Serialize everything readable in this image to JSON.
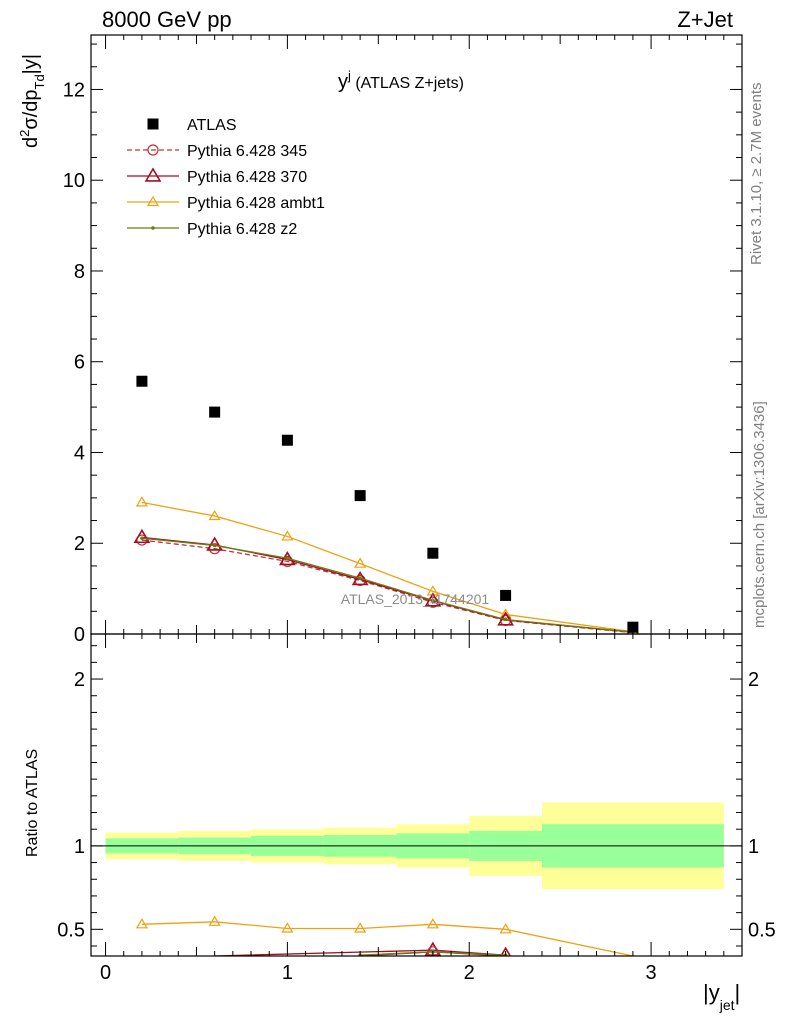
{
  "header": {
    "left": "8000 GeV pp",
    "right": "Z+Jet"
  },
  "side_labels": {
    "rivet": "Rivet 3.1.10, ≥ 2.7M events",
    "mcplots": "mcplots.cern.ch [arXiv:1306.3436]"
  },
  "watermark": "ATLAS_2013_I1744201",
  "chart_data": [
    {
      "type": "scatter",
      "panel": "main",
      "title_main": "y",
      "title_sup": "j",
      "title_rest": " (ATLAS Z+jets)",
      "ylabel": "d²σ/dp_Td|y|",
      "xlim": [
        -0.08,
        3.5
      ],
      "ylim": [
        0,
        13.2
      ],
      "yticks": [
        0,
        2,
        4,
        6,
        8,
        10,
        12
      ],
      "yticklabels": [
        "0",
        "2",
        "4",
        "6",
        "8",
        "10",
        "12"
      ],
      "bin_edges": [
        0,
        0.4,
        0.8,
        1.2,
        1.6,
        2.0,
        2.4,
        3.4
      ],
      "x": [
        0.2,
        0.6,
        1.0,
        1.4,
        1.8,
        2.2,
        2.9
      ],
      "legend_position": "top-left",
      "series": [
        {
          "name": "ATLAS",
          "color": "#000000",
          "marker": "square",
          "line": "none",
          "values": [
            5.57,
            4.89,
            4.27,
            3.05,
            1.78,
            0.85,
            0.15
          ]
        },
        {
          "name": "Pythia 6.428 345",
          "color": "#c0303c",
          "marker": "circle-open",
          "line": "dashed",
          "values": [
            2.07,
            1.88,
            1.6,
            1.18,
            0.7,
            0.3,
            0.03
          ]
        },
        {
          "name": "Pythia 6.428 370",
          "color": "#a01020",
          "marker": "triangle-open",
          "line": "solid",
          "values": [
            2.13,
            1.96,
            1.64,
            1.2,
            0.73,
            0.31,
            0.04
          ]
        },
        {
          "name": "Pythia 6.428 ambt1",
          "color": "#f0a010",
          "marker": "triangle-open-small",
          "line": "solid",
          "values": [
            2.9,
            2.6,
            2.15,
            1.55,
            0.94,
            0.43,
            0.05
          ]
        },
        {
          "name": "Pythia 6.428 z2",
          "color": "#6b7d10",
          "marker": "dot",
          "line": "solid",
          "values": [
            2.11,
            1.95,
            1.67,
            1.23,
            0.74,
            0.32,
            0.04
          ]
        }
      ]
    },
    {
      "type": "line",
      "panel": "ratio",
      "ylabel": "Ratio to ATLAS",
      "xlabel": "|y_jet|",
      "xlim": [
        -0.08,
        3.5
      ],
      "ylim": [
        0.34,
        2.27
      ],
      "yticks": [
        0.5,
        1,
        2
      ],
      "yticklabels": [
        "0.5",
        "1",
        "2"
      ],
      "xticks": [
        0,
        1,
        2,
        3
      ],
      "xticklabels": [
        "0",
        "1",
        "2",
        "3"
      ],
      "bin_edges": [
        0,
        0.4,
        0.8,
        1.2,
        1.6,
        2.0,
        2.4,
        3.4
      ],
      "band_inner": {
        "color": "#99ff99",
        "lower": [
          0.955,
          0.95,
          0.94,
          0.935,
          0.925,
          0.91,
          0.87
        ],
        "upper": [
          1.045,
          1.05,
          1.06,
          1.065,
          1.075,
          1.09,
          1.13
        ]
      },
      "band_outer": {
        "color": "#ffff99",
        "lower": [
          0.92,
          0.91,
          0.9,
          0.89,
          0.87,
          0.82,
          0.74
        ],
        "upper": [
          1.08,
          1.09,
          1.1,
          1.11,
          1.13,
          1.18,
          1.26
        ]
      },
      "x": [
        0.2,
        0.6,
        1.0,
        1.4,
        1.8,
        2.2,
        2.9
      ],
      "series": [
        {
          "name": "Pythia 6.428 ambt1",
          "color": "#f0a010",
          "marker": "triangle-open-small",
          "values": [
            0.53,
            0.545,
            0.505,
            0.505,
            0.53,
            0.5,
            0.34
          ]
        },
        {
          "name": "Pythia 6.428 370",
          "color": "#a01020",
          "marker": "triangle-open",
          "values": [
            null,
            0.34,
            null,
            null,
            0.375,
            0.345,
            null
          ]
        },
        {
          "name": "Pythia 6.428 345",
          "color": "#c0303c",
          "marker": "circle-open",
          "values": [
            null,
            null,
            null,
            0.34,
            0.365,
            0.34,
            null
          ]
        },
        {
          "name": "Pythia 6.428 z2",
          "color": "#6b7d10",
          "marker": "dot",
          "values": [
            null,
            null,
            null,
            0.345,
            0.365,
            0.345,
            null
          ]
        }
      ]
    }
  ]
}
